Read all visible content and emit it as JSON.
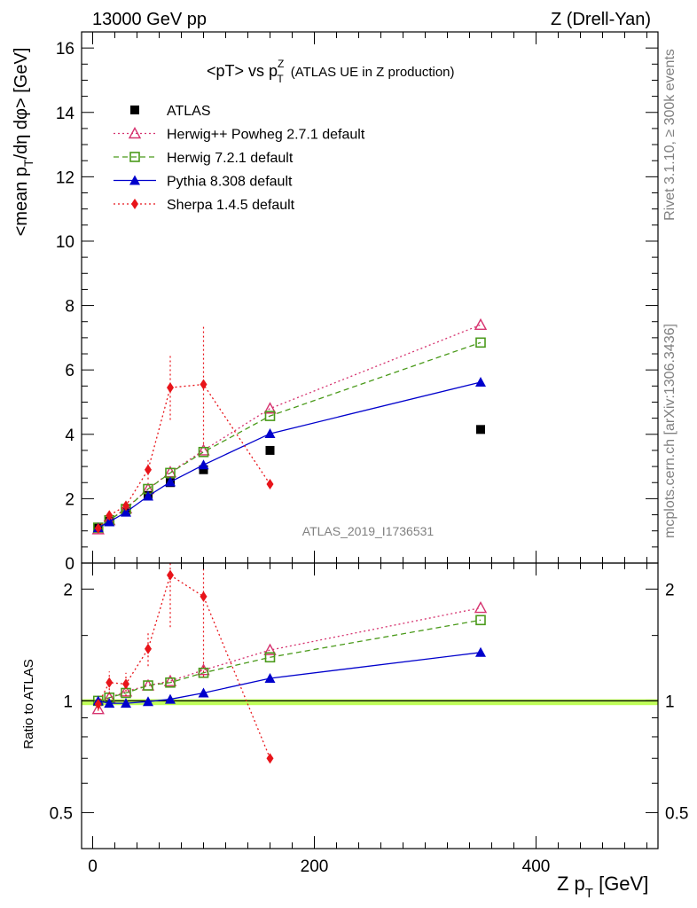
{
  "header": {
    "left": "13000 GeV pp",
    "right": "Z (Drell-Yan)"
  },
  "side": {
    "rivet": "Rivet 3.1.10, ≥ 300k events",
    "mcplots": "mcplots.cern.ch [arXiv:1306.3436]"
  },
  "watermark": "ATLAS_2019_I1736531",
  "chart_data": [
    {
      "type": "scatter",
      "title": "<pT> vs pTZ (ATLAS UE in Z production)",
      "title_main": "<pT> vs p",
      "title_sup": "Z",
      "title_sub": "T",
      "title_tail": "(ATLAS UE in Z production)",
      "ylabel": "<mean p_T/dη dφ> [GeV]",
      "xlabel": "Z p_T [GeV]",
      "xlim": [
        -10,
        510
      ],
      "ylim": [
        0,
        16.5
      ],
      "x_ticks": [
        "0",
        "200",
        "400"
      ],
      "y_ticks": [
        "0",
        "2",
        "4",
        "6",
        "8",
        "10",
        "12",
        "14",
        "16"
      ],
      "legend_position": "top-left",
      "series": [
        {
          "name": "ATLAS",
          "color": "#000000",
          "marker": "square",
          "line": "none",
          "x": [
            5,
            15,
            30,
            50,
            70,
            100,
            160,
            350
          ],
          "y": [
            1.1,
            1.3,
            1.6,
            2.1,
            2.5,
            2.9,
            3.5,
            4.15
          ]
        },
        {
          "name": "Herwig++ Powheg 2.7.1 default",
          "color": "#d6336f",
          "marker": "triangle-open",
          "line": "dotted",
          "x": [
            5,
            15,
            30,
            50,
            70,
            100,
            160,
            350
          ],
          "y": [
            1.05,
            1.33,
            1.7,
            2.3,
            2.82,
            3.5,
            4.8,
            7.4
          ]
        },
        {
          "name": "Herwig 7.2.1 default",
          "color": "#4a9a1a",
          "marker": "square-open",
          "line": "dashed",
          "x": [
            5,
            15,
            30,
            50,
            70,
            100,
            160,
            350
          ],
          "y": [
            1.1,
            1.33,
            1.68,
            2.3,
            2.8,
            3.45,
            4.57,
            6.85
          ]
        },
        {
          "name": "Pythia 8.308 default",
          "color": "#0000cc",
          "marker": "triangle",
          "line": "solid",
          "x": [
            5,
            15,
            30,
            50,
            70,
            100,
            160,
            350
          ],
          "y": [
            1.1,
            1.28,
            1.58,
            2.08,
            2.52,
            3.05,
            4.02,
            5.62
          ]
        },
        {
          "name": "Sherpa 1.4.5 default",
          "color": "#e8141a",
          "marker": "diamond",
          "line": "dotted",
          "x": [
            5,
            15,
            30,
            50,
            70,
            100,
            160
          ],
          "y": [
            1.08,
            1.48,
            1.78,
            2.9,
            5.45,
            5.55,
            2.45
          ],
          "err": [
            0.05,
            0.08,
            0.12,
            0.3,
            1.0,
            1.85,
            0.08
          ]
        }
      ]
    },
    {
      "type": "scatter",
      "title": "Ratio to ATLAS",
      "ylabel": "Ratio to ATLAS",
      "xlabel": "Z p_T [GeV]",
      "xlim": [
        -10,
        510
      ],
      "ylim": [
        0.4,
        2.35
      ],
      "y_scale": "log",
      "y_ticks": [
        "0.5",
        "1",
        "2"
      ],
      "reference_band": {
        "center": 1.0,
        "half_width": 0.01,
        "color": "#bfff59"
      },
      "series": [
        {
          "name": "Herwig++ Powheg 2.7.1 default",
          "color": "#d6336f",
          "marker": "triangle-open",
          "line": "dotted",
          "x": [
            5,
            15,
            30,
            50,
            70,
            100,
            160,
            350
          ],
          "y": [
            0.95,
            1.02,
            1.06,
            1.1,
            1.13,
            1.21,
            1.37,
            1.78
          ]
        },
        {
          "name": "Herwig 7.2.1 default",
          "color": "#4a9a1a",
          "marker": "square-open",
          "line": "dashed",
          "x": [
            5,
            15,
            30,
            50,
            70,
            100,
            160,
            350
          ],
          "y": [
            1.0,
            1.02,
            1.05,
            1.1,
            1.12,
            1.19,
            1.31,
            1.65
          ]
        },
        {
          "name": "Pythia 8.308 default",
          "color": "#0000cc",
          "marker": "triangle",
          "line": "solid",
          "x": [
            5,
            15,
            30,
            50,
            70,
            100,
            160,
            350
          ],
          "y": [
            1.0,
            0.985,
            0.985,
            0.995,
            1.01,
            1.05,
            1.15,
            1.35
          ]
        },
        {
          "name": "Sherpa 1.4.5 default",
          "color": "#e8141a",
          "marker": "diamond",
          "line": "dotted",
          "x": [
            5,
            15,
            30,
            50,
            70,
            100,
            160
          ],
          "y": [
            0.98,
            1.12,
            1.11,
            1.38,
            2.18,
            1.91,
            0.7
          ],
          "err": [
            0.04,
            0.08,
            0.08,
            0.14,
            0.6,
            0.75,
            0.02
          ]
        }
      ]
    }
  ]
}
